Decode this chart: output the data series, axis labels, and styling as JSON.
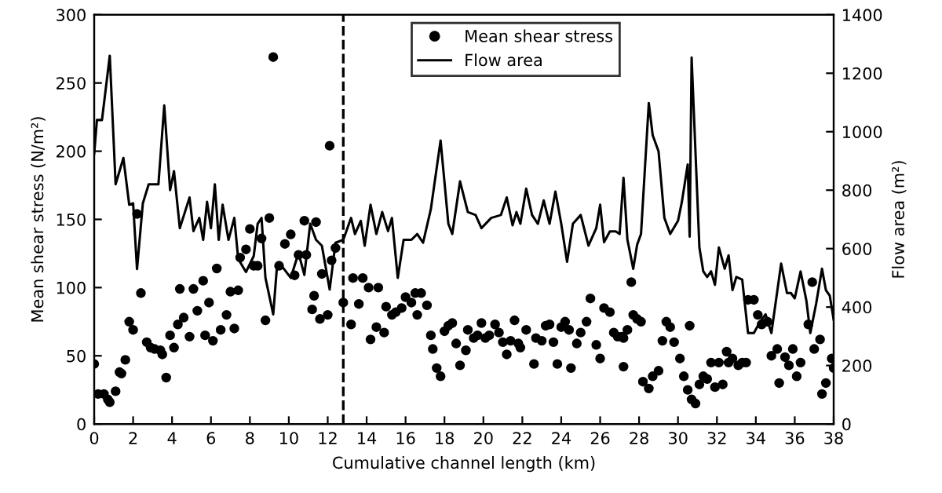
{
  "chart_data": {
    "type": "scatter",
    "xlabel": "Cumulative channel length (km)",
    "ylabel": "Mean shear stress (N/m²)",
    "y2label": "Flow area (m²)",
    "xlim": [
      0,
      38
    ],
    "xticks": [
      0,
      2,
      4,
      6,
      8,
      10,
      12,
      14,
      16,
      18,
      20,
      22,
      24,
      26,
      28,
      30,
      32,
      34,
      36,
      38
    ],
    "ylim": [
      0,
      300
    ],
    "yticks": [
      0,
      50,
      100,
      150,
      200,
      250,
      300
    ],
    "y2lim": [
      0,
      1400
    ],
    "y2ticks": [
      0,
      200,
      400,
      600,
      800,
      1000,
      1200,
      1400
    ],
    "legend": "top",
    "grid": false,
    "ref_lines": [
      {
        "axis": "x",
        "value": 12.8,
        "color": "#000000",
        "line_style": "dashed"
      }
    ],
    "series": [
      {
        "name": "Mean shear stress",
        "color": "#000000",
        "marker": "circle",
        "x": [
          0,
          0.2,
          0.5,
          0.7,
          0.8,
          1.1,
          1.3,
          1.4,
          1.6,
          1.8,
          2.0,
          2.2,
          2.4,
          2.7,
          2.9,
          3.1,
          3.4,
          3.5,
          3.7,
          3.9,
          4.1,
          4.3,
          4.4,
          4.6,
          4.9,
          5.1,
          5.3,
          5.6,
          5.7,
          5.9,
          6.1,
          6.3,
          6.5,
          6.8,
          7.0,
          7.2,
          7.4,
          7.5,
          7.8,
          8.0,
          8.2,
          8.4,
          8.6,
          8.8,
          9.0,
          9.2,
          9.5,
          9.8,
          10.1,
          10.3,
          10.5,
          10.8,
          10.9,
          11.2,
          11.3,
          11.4,
          11.6,
          11.7,
          12.0,
          12.1,
          12.2,
          12.4,
          12.8,
          13.2,
          13.3,
          13.6,
          13.8,
          14.1,
          14.2,
          14.5,
          14.6,
          14.9,
          15.0,
          15.3,
          15.5,
          15.8,
          16.0,
          16.3,
          16.5,
          16.6,
          16.8,
          17.1,
          17.3,
          17.4,
          17.6,
          17.8,
          18.0,
          18.2,
          18.4,
          18.6,
          18.8,
          19.1,
          19.2,
          19.5,
          19.7,
          19.9,
          20.1,
          20.3,
          20.6,
          20.8,
          21.0,
          21.2,
          21.4,
          21.6,
          21.8,
          21.9,
          22.2,
          22.6,
          22.7,
          23.0,
          23.2,
          23.4,
          23.6,
          23.8,
          24.0,
          24.2,
          24.4,
          24.5,
          24.8,
          25.0,
          25.3,
          25.5,
          25.8,
          26.0,
          26.2,
          26.5,
          26.7,
          26.9,
          27.1,
          27.2,
          27.4,
          27.2,
          27.6,
          27.7,
          27.9,
          28.1,
          28.2,
          28.5,
          28.7,
          29.0,
          29.2,
          29.4,
          29.6,
          29.8,
          30.1,
          30.3,
          30.5,
          30.6,
          30.7,
          30.9,
          31.1,
          31.3,
          31.5,
          31.7,
          31.9,
          32.1,
          32.3,
          32.5,
          32.6,
          32.8,
          33.1,
          33.3,
          33.5,
          33.6,
          33.9,
          34.1,
          34.3,
          34.6,
          34.8,
          35.1,
          35.2,
          35.5,
          35.7,
          35.9,
          36.1,
          36.3,
          36.7,
          36.9,
          37.0,
          37.3,
          37.4,
          37.6,
          37.9,
          38.0
        ],
        "values": [
          44,
          22,
          22,
          18,
          16,
          24,
          38,
          37,
          47,
          75,
          69,
          154,
          96,
          60,
          56,
          55,
          54,
          51,
          34,
          65,
          56,
          73,
          99,
          78,
          64,
          99,
          83,
          105,
          65,
          89,
          61,
          114,
          69,
          80,
          97,
          70,
          98,
          122,
          128,
          143,
          116,
          116,
          136,
          76,
          151,
          269,
          116,
          132,
          139,
          109,
          124,
          149,
          124,
          84,
          94,
          148,
          77,
          110,
          80,
          204,
          120,
          129,
          89,
          73,
          107,
          88,
          107,
          100,
          62,
          71,
          100,
          67,
          86,
          80,
          82,
          85,
          93,
          89,
          96,
          80,
          96,
          87,
          65,
          55,
          41,
          35,
          68,
          72,
          74,
          59,
          43,
          54,
          69,
          63,
          65,
          74,
          63,
          65,
          73,
          67,
          60,
          51,
          61,
          76,
          59,
          56,
          69,
          44,
          63,
          61,
          72,
          73,
          60,
          44,
          71,
          75,
          69,
          41,
          59,
          67,
          75,
          92,
          58,
          48,
          85,
          82,
          67,
          64,
          64,
          63,
          69,
          42,
          104,
          80,
          77,
          75,
          31,
          26,
          35,
          39,
          61,
          75,
          71,
          60,
          48,
          35,
          25,
          72,
          18,
          15,
          29,
          35,
          33,
          45,
          27,
          45,
          29,
          53,
          45,
          48,
          43,
          45,
          45,
          91,
          91,
          80,
          73,
          75,
          50,
          55,
          30,
          49,
          43,
          55,
          35,
          45,
          73,
          104,
          55,
          62,
          22,
          30,
          48,
          41
        ]
      },
      {
        "name": "Flow area",
        "type": "line",
        "axis": "y2",
        "color": "#000000",
        "marker": "none",
        "line_style": "solid",
        "x": [
          0,
          0.14,
          0.4,
          0.8,
          1.1,
          1.5,
          1.8,
          2.0,
          2.2,
          2.5,
          2.8,
          3.3,
          3.6,
          3.9,
          4.1,
          4.4,
          4.9,
          5.1,
          5.4,
          5.6,
          5.8,
          6.0,
          6.2,
          6.4,
          6.6,
          6.9,
          7.2,
          7.4,
          7.8,
          8.2,
          8.4,
          8.6,
          8.8,
          9.2,
          9.4,
          9.7,
          10.1,
          10.5,
          10.8,
          11.1,
          11.4,
          11.7,
          12.1,
          12.4,
          12.8,
          13.2,
          13.4,
          13.7,
          13.9,
          14.2,
          14.5,
          14.8,
          15.1,
          15.3,
          15.6,
          15.9,
          16.3,
          16.6,
          16.9,
          17.3,
          17.8,
          18.2,
          18.4,
          18.8,
          19.2,
          19.6,
          19.9,
          20.4,
          20.9,
          21.2,
          21.5,
          21.7,
          21.9,
          22.2,
          22.5,
          22.8,
          23.1,
          23.4,
          23.7,
          24.0,
          24.3,
          24.6,
          25.0,
          25.4,
          25.8,
          26.0,
          26.2,
          26.5,
          26.8,
          27.0,
          27.2,
          27.4,
          27.7,
          27.9,
          28.1,
          28.5,
          28.7,
          29.0,
          29.3,
          29.6,
          30.0,
          30.2,
          30.5,
          30.6,
          30.7,
          31.1,
          31.3,
          31.5,
          31.7,
          31.9,
          32.1,
          32.4,
          32.6,
          32.8,
          33.0,
          33.3,
          33.6,
          33.9,
          34.2,
          34.5,
          34.8,
          35.3,
          35.6,
          35.8,
          36.0,
          36.3,
          36.6,
          36.8,
          37.1,
          37.4,
          37.6,
          37.8,
          38.0
        ],
        "values": [
          925,
          1040,
          1040,
          1260,
          820,
          910,
          750,
          755,
          530,
          755,
          820,
          820,
          1090,
          800,
          865,
          670,
          775,
          660,
          705,
          630,
          760,
          670,
          820,
          630,
          750,
          630,
          705,
          565,
          520,
          575,
          685,
          705,
          500,
          375,
          545,
          535,
          500,
          585,
          510,
          685,
          630,
          610,
          460,
          620,
          630,
          705,
          650,
          695,
          610,
          750,
          650,
          725,
          660,
          705,
          500,
          630,
          630,
          650,
          620,
          735,
          970,
          685,
          650,
          830,
          725,
          715,
          670,
          705,
          715,
          775,
          680,
          725,
          685,
          805,
          715,
          685,
          765,
          685,
          795,
          685,
          555,
          685,
          715,
          610,
          670,
          750,
          622,
          659,
          659,
          650,
          842,
          631,
          531,
          613,
          650,
          1098,
          988,
          933,
          705,
          650,
          695,
          760,
          888,
          641,
          1254,
          604,
          522,
          503,
          522,
          476,
          604,
          531,
          577,
          458,
          503,
          494,
          311,
          311,
          348,
          375,
          311,
          549,
          448,
          448,
          430,
          522,
          421,
          311,
          412,
          531,
          458,
          439,
          357
        ]
      }
    ]
  }
}
